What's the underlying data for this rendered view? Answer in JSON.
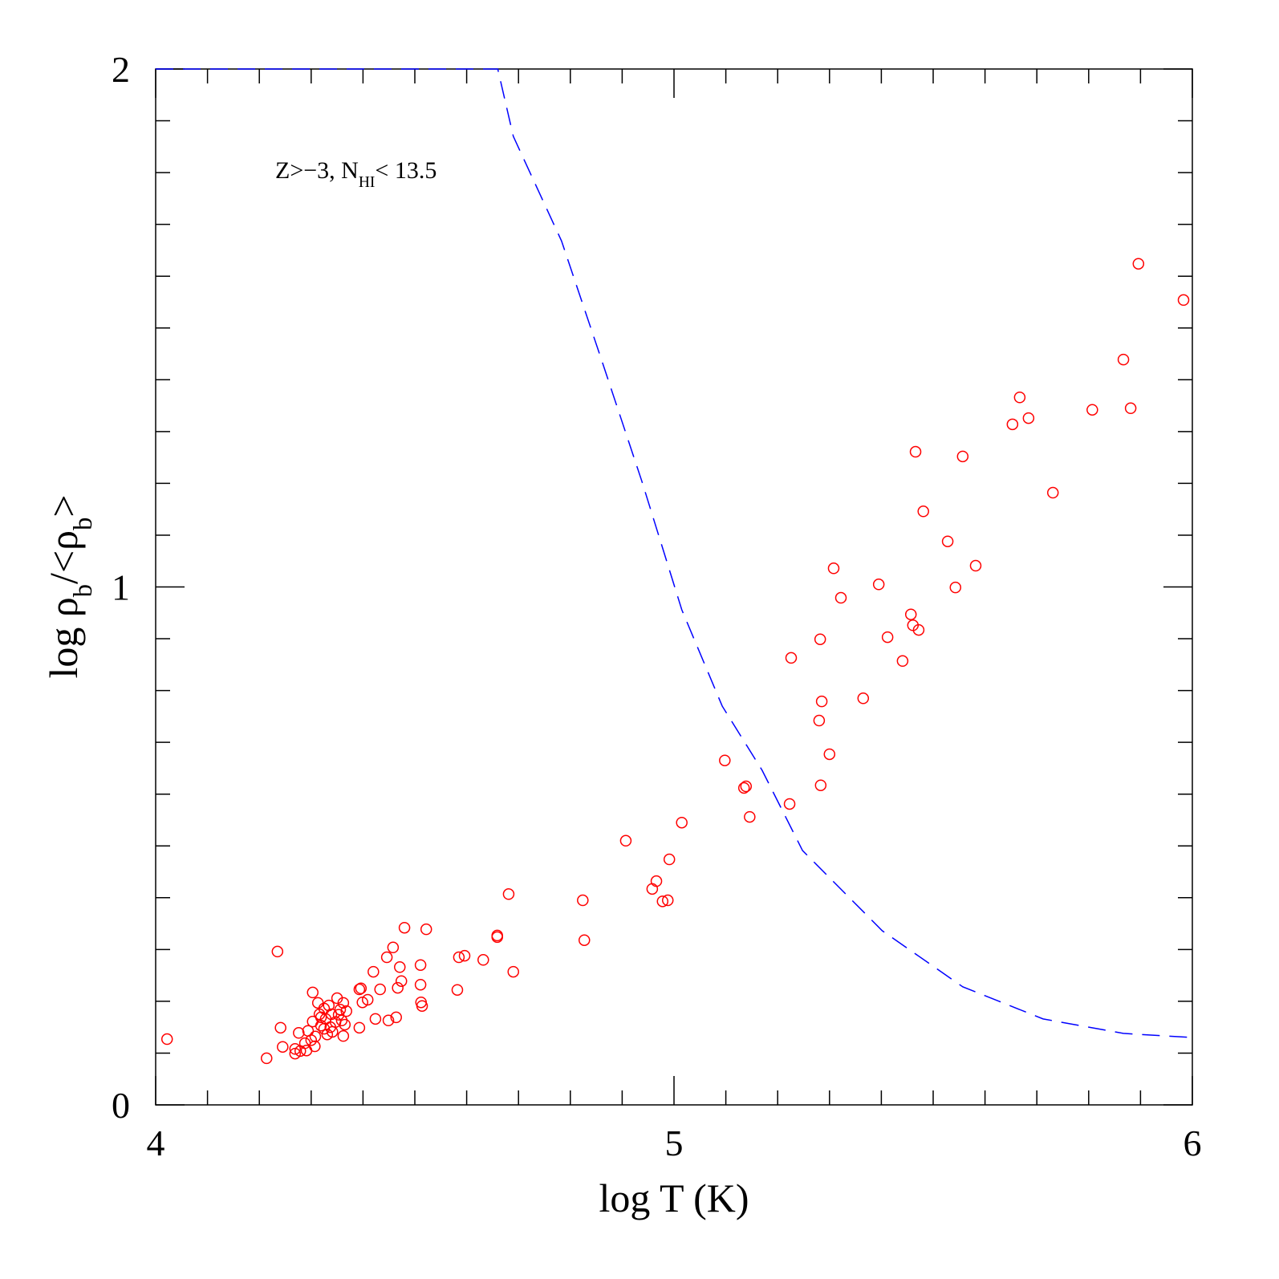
{
  "chart_data": {
    "type": "scatter",
    "xlabel": "log T (K)",
    "ylabel": [
      {
        "text": "log ρ"
      },
      {
        "text": "b",
        "sub": true
      },
      {
        "text": "/<ρ"
      },
      {
        "text": "b",
        "sub": true
      },
      {
        "text": ">"
      }
    ],
    "annotation": [
      {
        "text": "Z>−3, N"
      },
      {
        "text": "HI",
        "sub": true
      },
      {
        "text": "< 13.5"
      }
    ],
    "xlim": [
      4,
      6
    ],
    "ylim": [
      0,
      2
    ],
    "xticks": [
      4,
      5,
      6
    ],
    "yticks": [
      0,
      1,
      2
    ],
    "xminorticks": [
      4.1,
      4.2,
      4.3,
      4.4,
      4.5,
      4.6,
      4.7,
      4.8,
      4.9,
      5.1,
      5.2,
      5.3,
      5.4,
      5.5,
      5.6,
      5.7,
      5.8,
      5.9
    ],
    "yminorticks": [
      0.1,
      0.2,
      0.3,
      0.4,
      0.5,
      0.6,
      0.7,
      0.8,
      0.9,
      1.1,
      1.2,
      1.3,
      1.4,
      1.5,
      1.6,
      1.7,
      1.8,
      1.9
    ],
    "color": "#ff0000",
    "marker": "open-circle",
    "x": [
      4.022,
      4.235,
      4.214,
      4.241,
      4.245,
      4.269,
      4.269,
      4.276,
      4.279,
      4.288,
      4.291,
      4.294,
      4.3,
      4.303,
      4.303,
      4.307,
      4.308,
      4.313,
      4.316,
      4.319,
      4.319,
      4.325,
      4.325,
      4.328,
      4.331,
      4.334,
      4.337,
      4.339,
      4.341,
      4.347,
      4.35,
      4.353,
      4.356,
      4.359,
      4.362,
      4.362,
      4.365,
      4.368,
      4.393,
      4.393,
      4.396,
      4.399,
      4.409,
      4.42,
      4.424,
      4.433,
      4.446,
      4.449,
      4.458,
      4.464,
      4.471,
      4.467,
      4.474,
      4.48,
      4.511,
      4.511,
      4.512,
      4.514,
      4.522,
      4.582,
      4.585,
      4.596,
      4.632,
      4.659,
      4.659,
      4.681,
      4.69,
      4.824,
      4.827,
      4.907,
      4.958,
      4.966,
      4.978,
      4.988,
      4.991,
      5.015,
      5.098,
      5.135,
      5.139,
      5.146,
      5.223,
      5.226,
      5.28,
      5.282,
      5.283,
      5.285,
      5.3,
      5.308,
      5.322,
      5.365,
      5.395,
      5.412,
      5.441,
      5.457,
      5.461,
      5.466,
      5.472,
      5.481,
      5.528,
      5.543,
      5.557,
      5.582,
      5.653,
      5.667,
      5.684,
      5.731,
      5.807,
      5.867,
      5.881,
      5.896,
      5.983
    ],
    "values": [
      0.127,
      0.296,
      0.09,
      0.149,
      0.112,
      0.108,
      0.099,
      0.139,
      0.104,
      0.119,
      0.105,
      0.143,
      0.125,
      0.217,
      0.161,
      0.113,
      0.132,
      0.197,
      0.175,
      0.153,
      0.169,
      0.147,
      0.186,
      0.166,
      0.136,
      0.192,
      0.15,
      0.175,
      0.141,
      0.16,
      0.206,
      0.174,
      0.184,
      0.163,
      0.197,
      0.133,
      0.155,
      0.181,
      0.223,
      0.149,
      0.225,
      0.198,
      0.203,
      0.257,
      0.166,
      0.223,
      0.285,
      0.163,
      0.304,
      0.169,
      0.266,
      0.226,
      0.239,
      0.342,
      0.27,
      0.232,
      0.198,
      0.191,
      0.339,
      0.222,
      0.285,
      0.288,
      0.28,
      0.327,
      0.324,
      0.407,
      0.257,
      0.395,
      0.318,
      0.51,
      0.417,
      0.432,
      0.393,
      0.395,
      0.474,
      0.545,
      0.665,
      0.612,
      0.615,
      0.556,
      0.581,
      0.863,
      0.742,
      0.899,
      0.617,
      0.779,
      0.677,
      1.036,
      0.979,
      0.785,
      1.005,
      0.903,
      0.857,
      0.947,
      0.926,
      1.261,
      0.917,
      1.146,
      1.088,
      0.999,
      1.252,
      1.041,
      1.314,
      1.366,
      1.326,
      1.182,
      1.342,
      1.439,
      1.345,
      1.624,
      1.554
    ],
    "curve": {
      "color": "#0000ff",
      "dashed": true,
      "x": [
        4.0,
        4.66,
        4.69,
        4.783,
        4.861,
        4.938,
        5.015,
        5.093,
        5.17,
        5.248,
        5.402,
        5.557,
        5.712,
        5.867,
        6.0
      ],
      "values": [
        2.0,
        2.0,
        1.87,
        1.668,
        1.436,
        1.204,
        0.956,
        0.77,
        0.646,
        0.491,
        0.336,
        0.228,
        0.166,
        0.138,
        0.13
      ]
    }
  }
}
